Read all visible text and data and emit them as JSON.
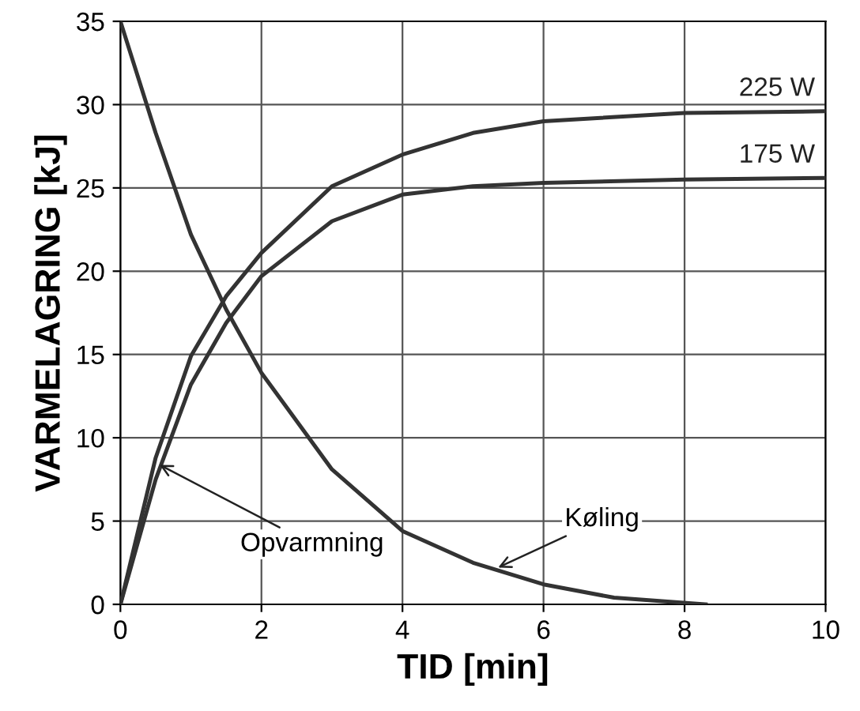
{
  "chart_data": {
    "type": "line",
    "xlabel": "TID [min]",
    "ylabel": "VARMELAGRING [kJ]",
    "xlim": [
      0,
      10
    ],
    "xticks": [
      0,
      2,
      4,
      6,
      8,
      10
    ],
    "ylim": [
      0,
      35
    ],
    "yticks": [
      0,
      5,
      10,
      15,
      20,
      25,
      30,
      35
    ],
    "grid": true,
    "legend": false,
    "marker": "none",
    "line_style": "solid",
    "series": [
      {
        "name": "225 W",
        "color": "#333333",
        "x": [
          0,
          0.5,
          1,
          1.5,
          2,
          3,
          4,
          5,
          6,
          8,
          10
        ],
        "values": [
          0,
          8.8,
          14.9,
          18.5,
          21.1,
          25.1,
          27.0,
          28.3,
          29.0,
          29.5,
          29.6
        ]
      },
      {
        "name": "175 W",
        "color": "#333333",
        "x": [
          0,
          0.5,
          1,
          1.5,
          2,
          3,
          4,
          5,
          6,
          8,
          10
        ],
        "values": [
          0,
          7.5,
          13.2,
          16.9,
          19.7,
          23.0,
          24.6,
          25.1,
          25.3,
          25.5,
          25.6
        ]
      },
      {
        "color": "#333333",
        "x": [
          0,
          0.5,
          1,
          1.5,
          2,
          3,
          4,
          5,
          6,
          7,
          8.3
        ],
        "values": [
          35,
          28.3,
          22.2,
          17.7,
          13.9,
          8.1,
          4.4,
          2.5,
          1.2,
          0.4,
          0
        ]
      }
    ],
    "annotations": [
      {
        "text": "Opvarmning",
        "x": 0.5,
        "y": 8.5
      },
      {
        "text": "Køling",
        "x": 5.3,
        "y": 2.1
      }
    ]
  }
}
